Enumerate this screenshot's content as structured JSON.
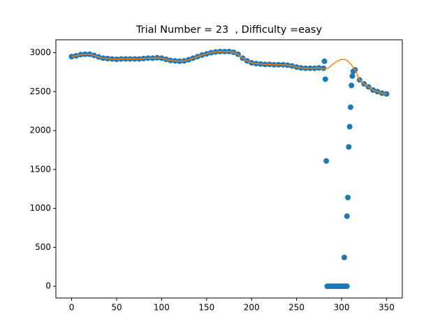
{
  "chart_data": {
    "type": "scatter",
    "title": "Trial Number = 23  , Difficulty =easy",
    "xlim": [
      -17.5,
      367.5
    ],
    "ylim": [
      -151,
      3166
    ],
    "xticks": [
      0,
      50,
      100,
      150,
      200,
      250,
      300,
      350
    ],
    "yticks": [
      0,
      500,
      1000,
      1500,
      2000,
      2500,
      3000
    ],
    "grid": false,
    "series": [
      {
        "mode": "markers",
        "color": "#1f77b4",
        "x": [
          0,
          5,
          10,
          15,
          20,
          25,
          30,
          35,
          40,
          45,
          50,
          55,
          60,
          65,
          70,
          75,
          80,
          85,
          90,
          95,
          100,
          105,
          110,
          115,
          120,
          125,
          130,
          135,
          140,
          145,
          150,
          155,
          160,
          165,
          170,
          175,
          180,
          185,
          190,
          195,
          200,
          205,
          210,
          215,
          220,
          225,
          230,
          235,
          240,
          245,
          250,
          255,
          260,
          265,
          270,
          275,
          280,
          281,
          282,
          283,
          284,
          286,
          288,
          290,
          292,
          294,
          296,
          298,
          300,
          302,
          304,
          306,
          303,
          306,
          307,
          308,
          309,
          310,
          311,
          312,
          313,
          315,
          320,
          325,
          330,
          335,
          340,
          345,
          350
        ],
        "values": [
          2950,
          2960,
          2975,
          2980,
          2980,
          2965,
          2945,
          2930,
          2925,
          2920,
          2915,
          2920,
          2920,
          2920,
          2920,
          2920,
          2925,
          2930,
          2930,
          2935,
          2930,
          2915,
          2900,
          2895,
          2890,
          2895,
          2910,
          2930,
          2950,
          2970,
          2985,
          3000,
          3010,
          3015,
          3015,
          3015,
          3005,
          2980,
          2930,
          2895,
          2870,
          2860,
          2855,
          2850,
          2850,
          2845,
          2845,
          2845,
          2840,
          2830,
          2815,
          2805,
          2800,
          2800,
          2800,
          2805,
          2800,
          2890,
          2660,
          1610,
          0,
          0,
          0,
          0,
          0,
          0,
          0,
          0,
          0,
          0,
          0,
          0,
          370,
          900,
          1140,
          1790,
          2050,
          2300,
          2580,
          2700,
          2760,
          2780,
          2650,
          2600,
          2560,
          2520,
          2500,
          2480,
          2470
        ]
      },
      {
        "mode": "line",
        "color": "#ff7f0e",
        "x": [
          0,
          5,
          10,
          15,
          20,
          25,
          30,
          35,
          40,
          45,
          50,
          55,
          60,
          65,
          70,
          75,
          80,
          85,
          90,
          95,
          100,
          105,
          110,
          115,
          120,
          125,
          130,
          135,
          140,
          145,
          150,
          155,
          160,
          165,
          170,
          175,
          180,
          185,
          190,
          195,
          200,
          205,
          210,
          215,
          220,
          225,
          230,
          235,
          240,
          245,
          250,
          255,
          260,
          265,
          270,
          275,
          280,
          285,
          290,
          295,
          300,
          305,
          310,
          315,
          320,
          325,
          330,
          335,
          340,
          345,
          350
        ],
        "values": [
          2950,
          2960,
          2975,
          2980,
          2980,
          2965,
          2945,
          2930,
          2925,
          2920,
          2915,
          2920,
          2920,
          2920,
          2920,
          2920,
          2925,
          2930,
          2930,
          2935,
          2930,
          2915,
          2900,
          2895,
          2890,
          2895,
          2910,
          2930,
          2950,
          2970,
          2985,
          3000,
          3010,
          3015,
          3015,
          3015,
          3005,
          2980,
          2930,
          2895,
          2870,
          2860,
          2855,
          2850,
          2850,
          2845,
          2845,
          2845,
          2840,
          2830,
          2815,
          2805,
          2800,
          2800,
          2800,
          2805,
          2790,
          2800,
          2850,
          2890,
          2915,
          2910,
          2860,
          2780,
          2650,
          2600,
          2560,
          2520,
          2500,
          2480,
          2470
        ]
      }
    ]
  }
}
